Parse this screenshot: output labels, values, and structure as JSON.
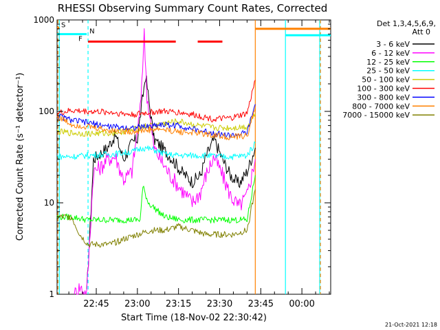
{
  "chart_data": {
    "type": "line",
    "title": "RHESSI Observing Summary Count Rates, Corrected",
    "xlabel": "Start Time (18-Nov-02 22:30:42)",
    "ylabel": "Corrected Count Rate (s⁻¹ detector⁻¹)",
    "y_scale": "log",
    "ylim": [
      1,
      1000
    ],
    "xlim": [
      "22:30:42",
      "00:10:30"
    ],
    "x_ticks": [
      "22:45",
      "23:00",
      "23:15",
      "23:30",
      "23:45",
      "00:00"
    ],
    "y_ticks": [
      "1",
      "10",
      "100",
      "1000"
    ],
    "detectors_label": "Det 1,3,4,5,6,9,",
    "attenuator_label": "Att 0",
    "footer_date": "21-Oct-2021 12:18",
    "series": [
      {
        "name": "3 - 6 keV",
        "color": "#000000",
        "x": [
          "22:30:42",
          "22:39:00",
          "22:41:30",
          "22:44:00",
          "22:49:00",
          "22:52:00",
          "22:55:00",
          "22:58:00",
          "23:00:00",
          "23:03:00",
          "23:06:00",
          "23:09:00",
          "23:12:00",
          "23:16:00",
          "23:20:00",
          "23:23:00",
          "23:25:00",
          "23:28:00",
          "23:31:00",
          "23:34:00",
          "23:37:00",
          "23:40:00",
          "23:43:00"
        ],
        "y": [
          null,
          null,
          1,
          30,
          40,
          55,
          30,
          45,
          50,
          250,
          50,
          40,
          32,
          22,
          17,
          20,
          32,
          50,
          30,
          20,
          16,
          22,
          40
        ]
      },
      {
        "name": "6 - 12 keV",
        "color": "#ff00ff",
        "x": [
          "22:30:42",
          "22:37:00",
          "22:39:00",
          "22:41:30",
          "22:44:00",
          "22:47:00",
          "22:49:00",
          "22:52:00",
          "22:55:00",
          "22:58:00",
          "23:01:00",
          "23:02:30",
          "23:03:30",
          "23:06:00",
          "23:09:00",
          "23:12:00",
          "23:16:00",
          "23:20:00",
          "23:23:00",
          "23:25:00",
          "23:28:00",
          "23:31:00",
          "23:34:00",
          "23:37:00",
          "23:40:00",
          "23:43:00"
        ],
        "y": [
          null,
          1,
          1.2,
          1,
          22,
          25,
          30,
          32,
          18,
          22,
          100,
          700,
          150,
          40,
          28,
          20,
          14,
          10,
          13,
          20,
          32,
          20,
          12,
          9,
          12,
          30
        ]
      },
      {
        "name": "12 - 25 keV",
        "color": "#00ff00",
        "x": [
          "22:30:42",
          "22:36:00",
          "22:42:00",
          "22:50:00",
          "22:58:00",
          "23:01:00",
          "23:02:00",
          "23:04:00",
          "23:10:00",
          "23:16:00",
          "23:20:00",
          "23:25:00",
          "23:30:00",
          "23:35:00",
          "23:40:00",
          "23:43:00"
        ],
        "y": [
          7,
          7,
          6.5,
          6.5,
          6.5,
          6.5,
          15,
          10,
          7,
          6.5,
          6.5,
          6.5,
          6.5,
          6.5,
          6.5,
          20
        ]
      },
      {
        "name": "25 - 50 keV",
        "color": "#00ffff",
        "x": [
          "22:30:42",
          "22:36:00",
          "22:42:00",
          "22:50:00",
          "22:58:00",
          "23:02:00",
          "23:06:00",
          "23:10:00",
          "23:15:00",
          "23:20:00",
          "23:25:00",
          "23:30:00",
          "23:35:00",
          "23:40:00",
          "23:43:00"
        ],
        "y": [
          32,
          32,
          33,
          34,
          36,
          40,
          38,
          34,
          33,
          33,
          33,
          32,
          32,
          33,
          45
        ]
      },
      {
        "name": "50 - 100 keV",
        "color": "#cccc00",
        "x": [
          "22:30:42",
          "22:36:00",
          "22:42:00",
          "22:50:00",
          "22:58:00",
          "23:02:00",
          "23:08:00",
          "23:15:00",
          "23:22:00",
          "23:28:00",
          "23:34:00",
          "23:40:00",
          "23:43:00"
        ],
        "y": [
          60,
          58,
          57,
          58,
          62,
          68,
          72,
          78,
          70,
          66,
          66,
          68,
          95
        ]
      },
      {
        "name": "100 - 300 keV",
        "color": "#ff0000",
        "x": [
          "22:30:42",
          "22:36:00",
          "22:42:00",
          "22:50:00",
          "22:58:00",
          "23:03:00",
          "23:08:00",
          "23:15:00",
          "23:22:00",
          "23:28:00",
          "23:34:00",
          "23:40:00",
          "23:43:00"
        ],
        "y": [
          95,
          102,
          100,
          98,
          92,
          96,
          100,
          98,
          90,
          82,
          84,
          95,
          220
        ]
      },
      {
        "name": "300 - 800 keV",
        "color": "#0000ff",
        "x": [
          "22:30:42",
          "22:36:00",
          "22:42:00",
          "22:50:00",
          "22:58:00",
          "23:03:00",
          "23:08:00",
          "23:15:00",
          "23:22:00",
          "23:28:00",
          "23:34:00",
          "23:40:00",
          "23:43:00"
        ],
        "y": [
          90,
          80,
          75,
          68,
          66,
          68,
          72,
          70,
          62,
          58,
          54,
          58,
          120
        ]
      },
      {
        "name": "800 - 7000 keV",
        "color": "#ff8000",
        "x": [
          "22:30:42",
          "22:36:00",
          "22:42:00",
          "22:50:00",
          "22:58:00",
          "23:03:00",
          "23:08:00",
          "23:15:00",
          "23:22:00",
          "23:28:00",
          "23:34:00",
          "23:40:00",
          "23:43:00"
        ],
        "y": [
          88,
          72,
          68,
          62,
          60,
          62,
          64,
          60,
          58,
          55,
          52,
          54,
          110
        ]
      },
      {
        "name": "7000 - 15000 keV",
        "color": "#808000",
        "x": [
          "22:30:42",
          "22:36:00",
          "22:39:00",
          "22:42:00",
          "22:46:00",
          "22:50:00",
          "22:55:00",
          "23:00:00",
          "23:05:00",
          "23:10:00",
          "23:15:00",
          "23:20:00",
          "23:25:00",
          "23:30:00",
          "23:35:00",
          "23:40:00",
          "23:43:00"
        ],
        "y": [
          7,
          7,
          4.5,
          3.5,
          3.5,
          3.5,
          4,
          4.5,
          5,
          5,
          5.5,
          5,
          4.5,
          4.5,
          4.5,
          5,
          14
        ]
      }
    ],
    "markers": {
      "intervals": [
        {
          "label": "S",
          "color": "#ff8000",
          "start": "22:30:42",
          "end": "22:31:30",
          "level": 820
        },
        {
          "label": "N",
          "color": "#00ffff",
          "start": "22:30:42",
          "end": "22:41:30",
          "level": 700
        },
        {
          "label": "F",
          "color": "#ff0000",
          "start": "22:42:00",
          "end": "23:14:00",
          "level": 580
        },
        {
          "label": "",
          "color": "#ff0000",
          "start": "23:22:00",
          "end": "23:31:00",
          "level": 580
        },
        {
          "label": "",
          "color": "#ff8000",
          "start": "23:43:00",
          "end": "00:10:30",
          "level": 800
        },
        {
          "label": "",
          "color": "#00ffff",
          "start": "23:54:00",
          "end": "00:10:30",
          "level": 680
        }
      ],
      "vlines": [
        {
          "time": "22:31:00",
          "color": "#ff8000",
          "style": "dashed"
        },
        {
          "time": "22:31:30",
          "color": "#00ffff",
          "style": "solid"
        },
        {
          "time": "22:42:00",
          "color": "#00ffff",
          "style": "dashed"
        },
        {
          "time": "23:43:00",
          "color": "#ff8000",
          "style": "solid"
        },
        {
          "time": "23:54:00",
          "color": "#00ffff",
          "style": "solid"
        },
        {
          "time": "00:06:30",
          "color": "#00ffff",
          "style": "solid"
        },
        {
          "time": "00:06:45",
          "color": "#ff8000",
          "style": "dashed"
        }
      ]
    }
  }
}
